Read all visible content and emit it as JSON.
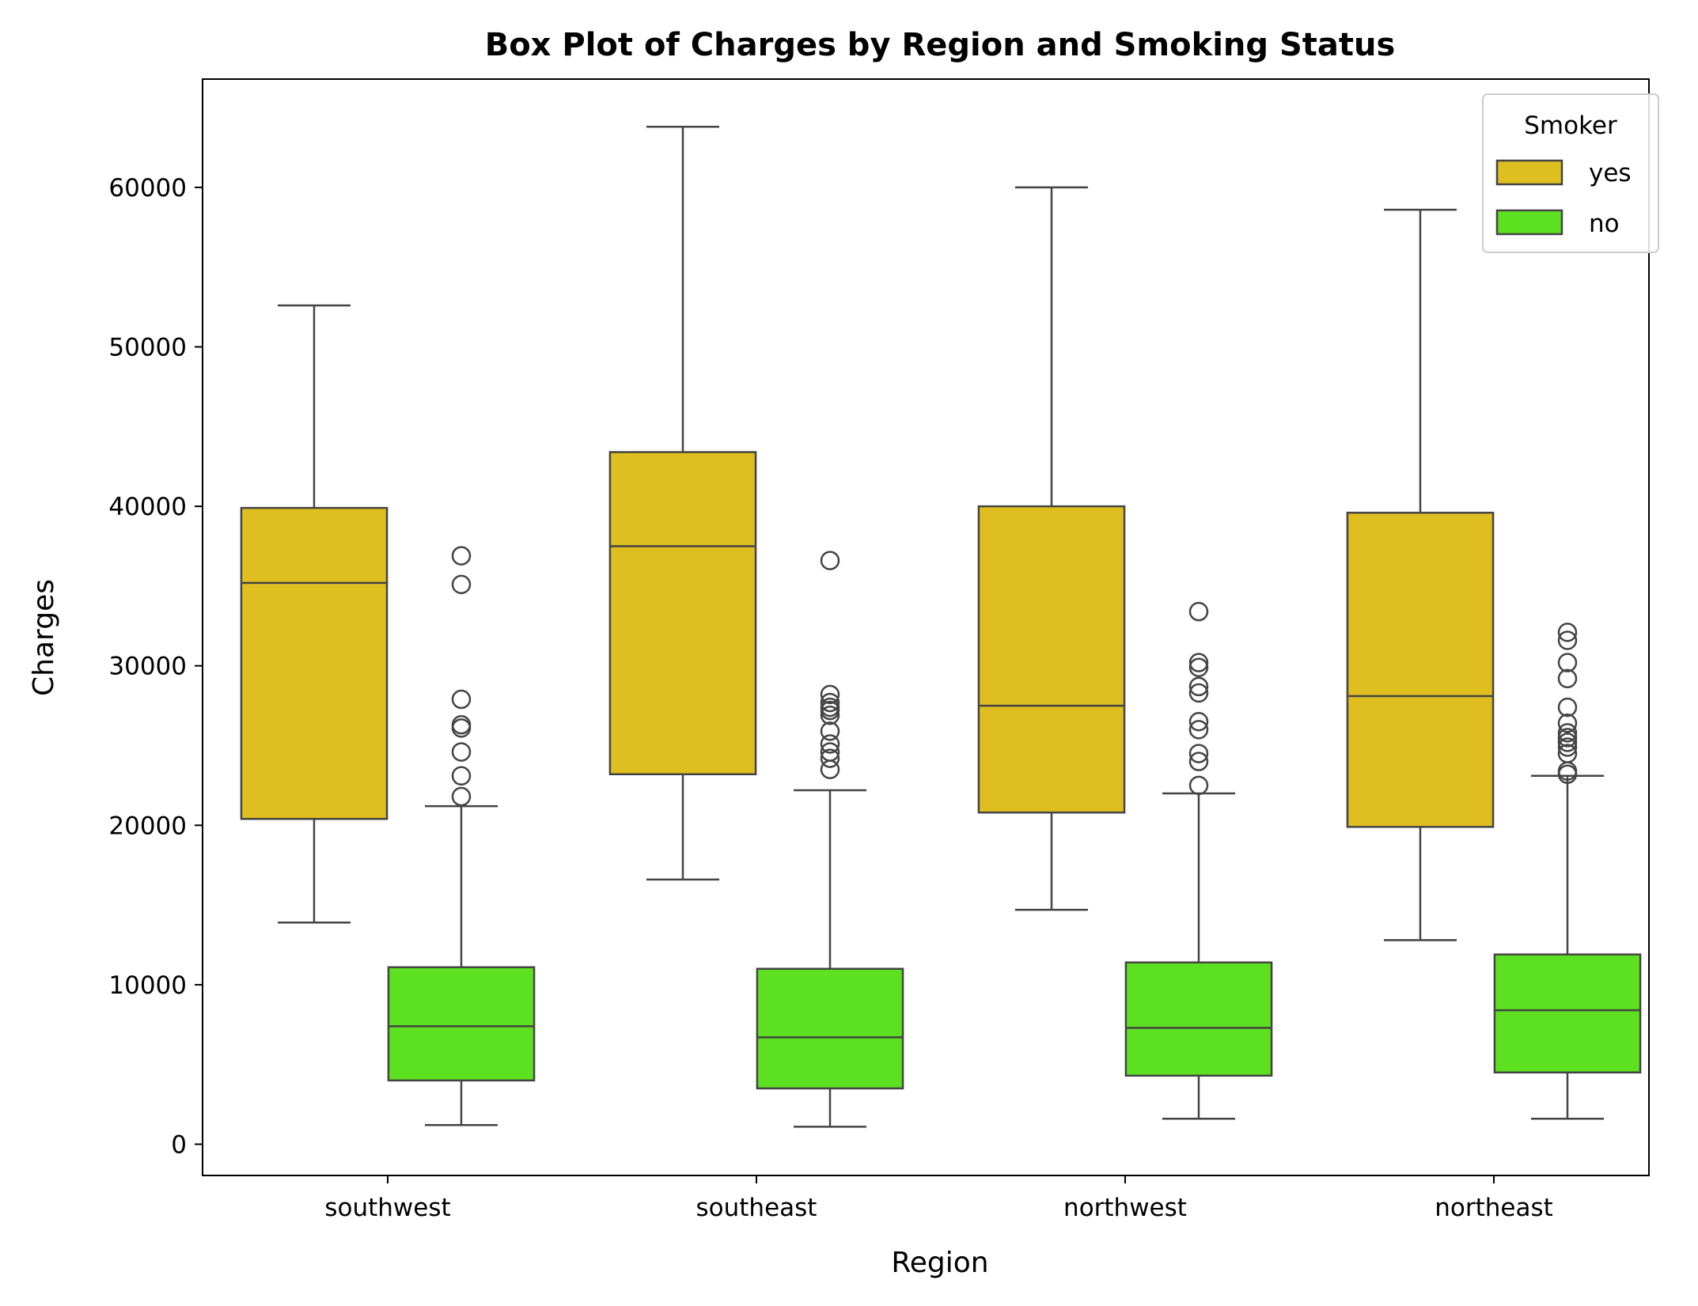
{
  "chart_data": {
    "type": "box",
    "title": "Box Plot of Charges by Region and Smoking Status",
    "xlabel": "Region",
    "ylabel": "Charges",
    "categories": [
      "southwest",
      "southeast",
      "northwest",
      "northeast"
    ],
    "ylim": [
      -2000,
      67000
    ],
    "yticks": [
      0,
      10000,
      20000,
      30000,
      40000,
      50000,
      60000
    ],
    "grid": false,
    "legend": {
      "title": "Smoker",
      "placement": "top-right",
      "entries": [
        {
          "label": "yes",
          "color": "#dfbf1f"
        },
        {
          "label": "no",
          "color": "#5ce01f"
        }
      ]
    },
    "series": [
      {
        "name": "yes",
        "color": "#dfbf1f",
        "boxes": [
          {
            "whisker_low": 13900,
            "q1": 20400,
            "median": 35200,
            "q3": 39900,
            "whisker_high": 52600,
            "outliers": []
          },
          {
            "whisker_low": 16600,
            "q1": 23200,
            "median": 37500,
            "q3": 43400,
            "whisker_high": 63800,
            "outliers": []
          },
          {
            "whisker_low": 14700,
            "q1": 20800,
            "median": 27500,
            "q3": 40000,
            "whisker_high": 60000,
            "outliers": []
          },
          {
            "whisker_low": 12800,
            "q1": 19900,
            "median": 28100,
            "q3": 39600,
            "whisker_high": 58600,
            "outliers": []
          }
        ]
      },
      {
        "name": "no",
        "color": "#5ce01f",
        "boxes": [
          {
            "whisker_low": 1200,
            "q1": 4000,
            "median": 7400,
            "q3": 11100,
            "whisker_high": 21200,
            "outliers": [
              21800,
              23100,
              24600,
              26100,
              26300,
              27900,
              35100,
              36900
            ]
          },
          {
            "whisker_low": 1100,
            "q1": 3500,
            "median": 6700,
            "q3": 11000,
            "whisker_high": 22200,
            "outliers": [
              23500,
              24200,
              24600,
              25100,
              25900,
              26900,
              27200,
              27400,
              27700,
              28200,
              36600
            ]
          },
          {
            "whisker_low": 1600,
            "q1": 4300,
            "median": 7300,
            "q3": 11400,
            "whisker_high": 22000,
            "outliers": [
              22500,
              24000,
              24500,
              26000,
              26500,
              28300,
              28700,
              29900,
              30200,
              33400
            ]
          },
          {
            "whisker_low": 1600,
            "q1": 4500,
            "median": 8400,
            "q3": 11900,
            "whisker_high": 23100,
            "outliers": [
              23200,
              23400,
              24500,
              24900,
              25200,
              25500,
              25800,
              26400,
              27400,
              29200,
              30200,
              31600,
              32100
            ]
          }
        ]
      }
    ]
  }
}
